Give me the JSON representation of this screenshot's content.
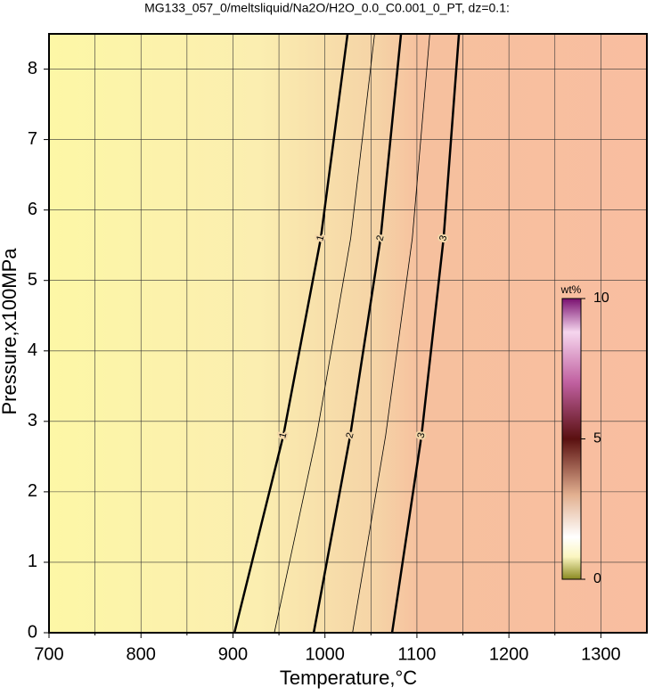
{
  "chart_data": {
    "type": "contour",
    "title": "MG133_057_0/meltsliquid/Na2O/H2O_0.0_C0.001_0_PT, dz=0.1:",
    "xlabel": "Temperature,°C",
    "ylabel": "Pressure,x100MPa",
    "xlim": [
      700,
      1350
    ],
    "ylim": [
      0,
      8.5
    ],
    "xticks": [
      700,
      800,
      900,
      1000,
      1100,
      1200,
      1300
    ],
    "xminor": [
      750,
      850,
      950,
      1050,
      1150,
      1250
    ],
    "yticks": [
      0,
      1,
      2,
      3,
      4,
      5,
      6,
      7,
      8
    ],
    "grid": true,
    "contours": [
      {
        "level": 1,
        "bold": true,
        "x": [
          901.6,
          954.8,
          995.5,
          1024.6
        ],
        "y": [
          0,
          2.8,
          5.6,
          8.5
        ]
      },
      {
        "level": 1.5,
        "bold": false,
        "x": [
          945,
          991,
          1028,
          1054
        ],
        "y": [
          0,
          2.8,
          5.6,
          8.5
        ]
      },
      {
        "level": 2,
        "bold": true,
        "x": [
          987.8,
          1027.5,
          1060.5,
          1082.7
        ],
        "y": [
          0,
          2.8,
          5.6,
          8.5
        ]
      },
      {
        "level": 2.5,
        "bold": false,
        "x": [
          1030,
          1066,
          1095,
          1114
        ],
        "y": [
          0,
          2.8,
          5.6,
          8.5
        ]
      },
      {
        "level": 3,
        "bold": true,
        "x": [
          1073,
          1105,
          1129,
          1145.7
        ],
        "y": [
          0,
          2.8,
          5.6,
          8.5
        ]
      }
    ],
    "colorbar": {
      "label": "wt%",
      "lim": [
        0,
        10
      ],
      "ticks": [
        0,
        5,
        10
      ]
    }
  }
}
